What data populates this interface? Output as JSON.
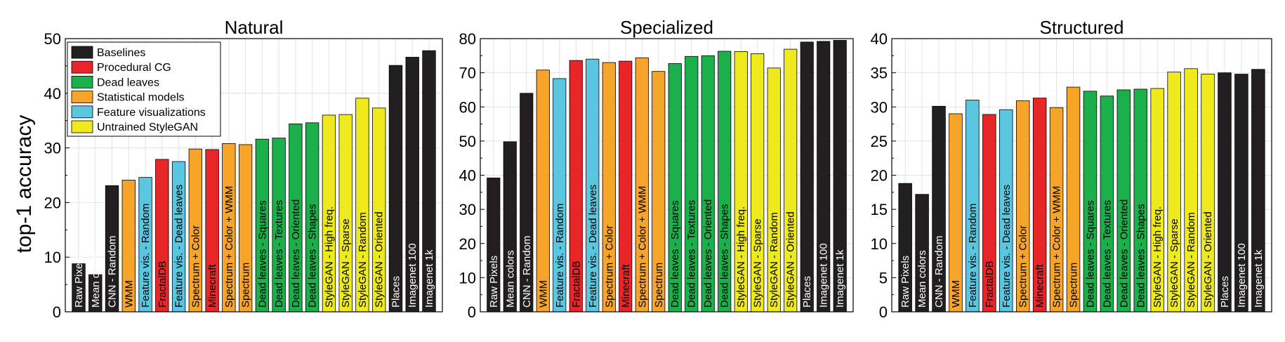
{
  "ylabel": "top-1 accuracy",
  "legend": {
    "entries": [
      {
        "key": "baselines",
        "label": "Baselines"
      },
      {
        "key": "procedural",
        "label": "Procedural CG"
      },
      {
        "key": "deadleaves",
        "label": "Dead leaves"
      },
      {
        "key": "statistical",
        "label": "Statistical models"
      },
      {
        "key": "featvis",
        "label": "Feature visualizations"
      },
      {
        "key": "stylegan",
        "label": "Untrained StyleGAN"
      }
    ]
  },
  "colors": {
    "baselines": "#231f20",
    "procedural": "#e8262a",
    "deadleaves": "#1bb04b",
    "statistical": "#f7a42b",
    "featvis": "#5bc6df",
    "stylegan": "#eeea1d"
  },
  "chart_data": [
    {
      "type": "bar",
      "title": "Natural",
      "ylim": [
        0,
        50
      ],
      "yticks": [
        0,
        10,
        20,
        30,
        40,
        50
      ],
      "legend_position": "top-left",
      "grid": true,
      "categories": [
        "Raw Pixels",
        "Mean colors",
        "CNN - Random",
        "WMM",
        "Feature vis. - Random",
        "FractalDB",
        "Feature vis. - Dead leaves",
        "Spectrum + Color",
        "Minecraft",
        "Spectrum + Color + WMM",
        "Spectrum",
        "Dead leaves - Squares",
        "Dead leaves - Textures",
        "Dead leaves - Oriented",
        "Dead leaves - Shapes",
        "StyleGAN - High freq.",
        "StyleGAN - Sparse",
        "StyleGAN - Random",
        "StyleGAN - Oriented",
        "Places",
        "Imagenet 100",
        "Imagenet 1k"
      ],
      "groups": [
        "baselines",
        "baselines",
        "baselines",
        "statistical",
        "featvis",
        "procedural",
        "featvis",
        "statistical",
        "procedural",
        "statistical",
        "statistical",
        "deadleaves",
        "deadleaves",
        "deadleaves",
        "deadleaves",
        "stylegan",
        "stylegan",
        "stylegan",
        "stylegan",
        "baselines",
        "baselines",
        "baselines"
      ],
      "values": [
        8.8,
        6.8,
        23.1,
        24.1,
        24.6,
        27.9,
        27.5,
        29.8,
        29.7,
        30.8,
        30.6,
        31.6,
        31.8,
        34.4,
        34.6,
        36.0,
        36.1,
        39.1,
        37.3,
        45.1,
        46.6,
        47.8
      ]
    },
    {
      "type": "bar",
      "title": "Specialized",
      "ylim": [
        0,
        80
      ],
      "yticks": [
        0,
        10,
        20,
        30,
        40,
        50,
        60,
        70,
        80
      ],
      "grid": true,
      "categories": [
        "Raw Pixels",
        "Mean colors",
        "CNN - Random",
        "WMM",
        "Feature vis. - Random",
        "FractalDB",
        "Feature vis. - Dead leaves",
        "Spectrum + Color",
        "Minecraft",
        "Spectrum + Color + WMM",
        "Spectrum",
        "Dead leaves - Squares",
        "Dead leaves - Textures",
        "Dead leaves - Oriented",
        "Dead leaves - Shapes",
        "StyleGAN - High freq.",
        "StyleGAN - Sparse",
        "StyleGAN - Random",
        "StyleGAN - Oriented",
        "Places",
        "Imagenet 100",
        "Imagenet 1k"
      ],
      "groups": [
        "baselines",
        "baselines",
        "baselines",
        "statistical",
        "featvis",
        "procedural",
        "featvis",
        "statistical",
        "procedural",
        "statistical",
        "statistical",
        "deadleaves",
        "deadleaves",
        "deadleaves",
        "deadleaves",
        "stylegan",
        "stylegan",
        "stylegan",
        "stylegan",
        "baselines",
        "baselines",
        "baselines"
      ],
      "values": [
        39.2,
        49.8,
        64.0,
        70.8,
        68.3,
        73.6,
        74.0,
        73.0,
        73.4,
        74.4,
        70.4,
        72.7,
        74.8,
        75.0,
        76.3,
        76.2,
        75.6,
        71.4,
        76.9,
        79.0,
        79.2,
        79.5
      ]
    },
    {
      "type": "bar",
      "title": "Structured",
      "ylim": [
        0,
        40
      ],
      "yticks": [
        0,
        5,
        10,
        15,
        20,
        25,
        30,
        35,
        40
      ],
      "grid": true,
      "categories": [
        "Raw Pixels",
        "Mean colors",
        "CNN - Random",
        "WMM",
        "Feature vis. - Random",
        "FractalDB",
        "Feature vis. - Dead leaves",
        "Spectrum + Color",
        "Minecraft",
        "Spectrum + Color + WMM",
        "Spectrum",
        "Dead leaves - Squares",
        "Dead leaves - Textures",
        "Dead leaves - Oriented",
        "Dead leaves - Shapes",
        "StyleGAN - High freq.",
        "StyleGAN - Sparse",
        "StyleGAN - Random",
        "StyleGAN - Oriented",
        "Places",
        "Imagenet 100",
        "Imagenet 1k"
      ],
      "groups": [
        "baselines",
        "baselines",
        "baselines",
        "statistical",
        "featvis",
        "procedural",
        "featvis",
        "statistical",
        "procedural",
        "statistical",
        "statistical",
        "deadleaves",
        "deadleaves",
        "deadleaves",
        "deadleaves",
        "stylegan",
        "stylegan",
        "stylegan",
        "stylegan",
        "baselines",
        "baselines",
        "baselines"
      ],
      "values": [
        18.8,
        17.2,
        30.1,
        29.0,
        31.0,
        28.9,
        29.6,
        30.9,
        31.3,
        29.9,
        32.9,
        32.3,
        31.6,
        32.5,
        32.6,
        32.7,
        35.1,
        35.6,
        34.8,
        35.0,
        34.8,
        35.5
      ]
    }
  ]
}
